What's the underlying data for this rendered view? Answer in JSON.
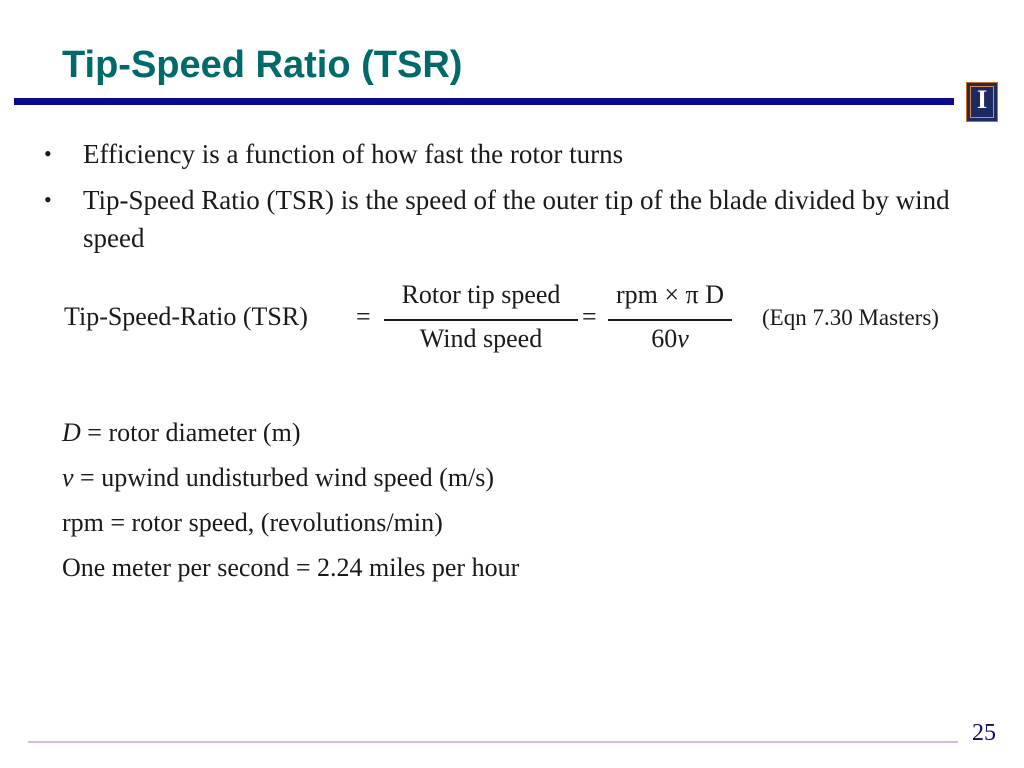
{
  "slide": {
    "title": "Tip-Speed Ratio (TSR)",
    "logo_letter": "I",
    "page_number": "25"
  },
  "bullets": [
    {
      "symbol": "•",
      "text": "Efficiency is a function of how fast the rotor turns"
    },
    {
      "symbol": "•",
      "text": "Tip-Speed Ratio (TSR) is the speed of the outer tip of the blade divided by wind speed"
    }
  ],
  "equation": {
    "lhs": "Tip-Speed-Ratio (TSR)",
    "equals": "=",
    "fraction1": {
      "numerator": "Rotor tip speed",
      "denominator": "Wind speed"
    },
    "fraction2": {
      "numerator": "rpm × π D",
      "denominator_number": "60",
      "denominator_var": "v"
    },
    "reference": "(Eqn 7.30 Masters)"
  },
  "definitions": [
    {
      "symbol": "D",
      "symbol_italic": true,
      "text": " = rotor diameter (m)"
    },
    {
      "symbol": "v",
      "symbol_italic": true,
      "text": " = upwind undisturbed wind speed (m/s)"
    },
    {
      "symbol": "",
      "symbol_italic": false,
      "text": "rpm = rotor speed, (revolutions/min)"
    },
    {
      "symbol": "",
      "symbol_italic": false,
      "text": "One meter per second = 2.24 miles per hour"
    }
  ]
}
